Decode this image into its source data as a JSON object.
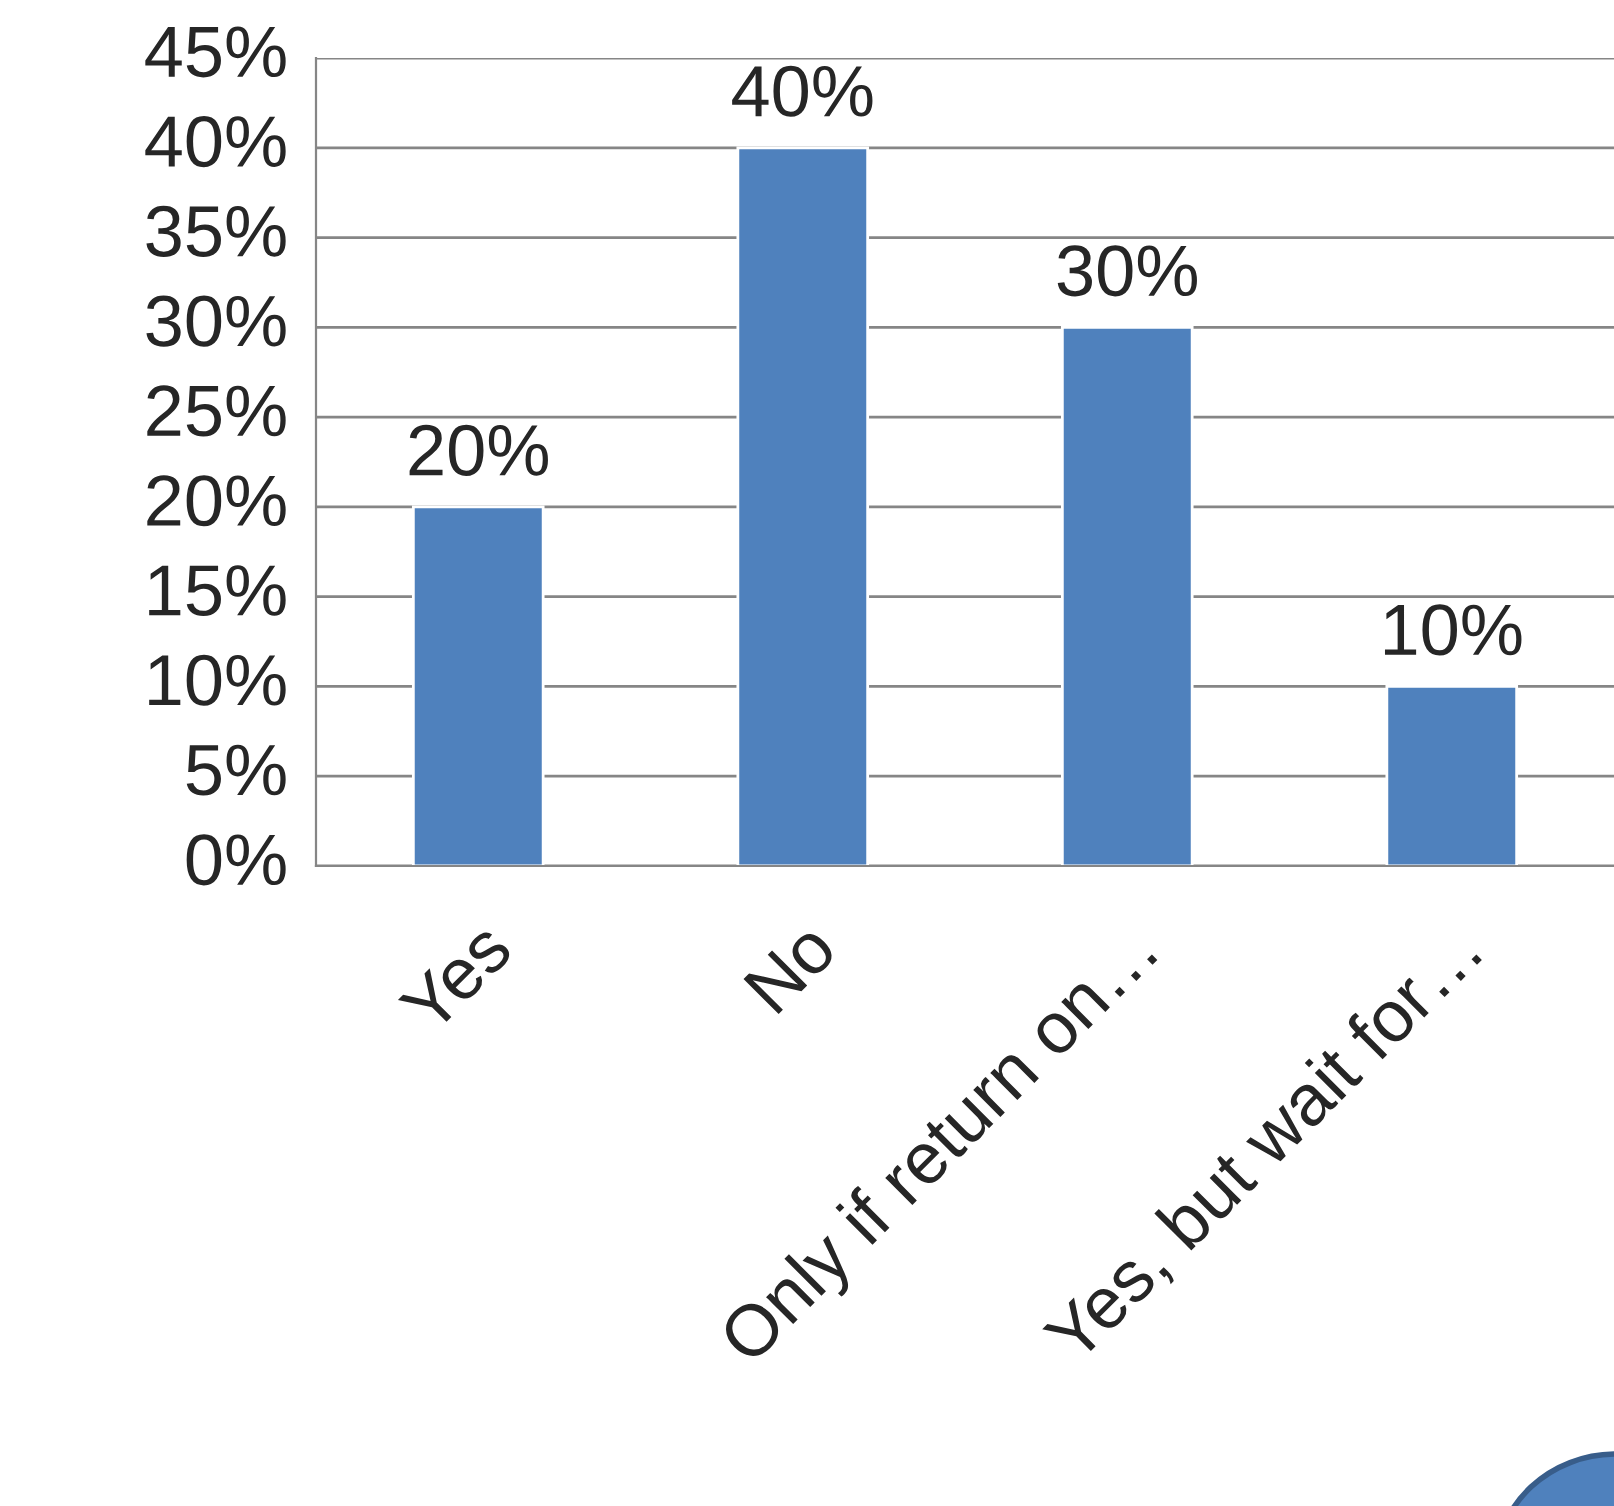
{
  "chart_data": {
    "type": "bar",
    "categories": [
      "Yes",
      "No",
      "Only if return on…",
      "Yes, but wait for…"
    ],
    "values": [
      20,
      40,
      30,
      10
    ],
    "color": "#4f81bd",
    "value_labels": [
      "20%",
      "40%",
      "30%",
      "10%"
    ],
    "ylim": [
      0,
      45
    ],
    "yticks": [
      {
        "value": 0,
        "label": "0%"
      },
      {
        "value": 5,
        "label": "5%"
      },
      {
        "value": 10,
        "label": "10%"
      },
      {
        "value": 15,
        "label": "15%"
      },
      {
        "value": 20,
        "label": "20%"
      },
      {
        "value": 25,
        "label": "25%"
      },
      {
        "value": 30,
        "label": "30%"
      },
      {
        "value": 35,
        "label": "35%"
      },
      {
        "value": 40,
        "label": "40%"
      },
      {
        "value": 45,
        "label": "45%"
      }
    ],
    "grid": "y",
    "legend": false
  }
}
